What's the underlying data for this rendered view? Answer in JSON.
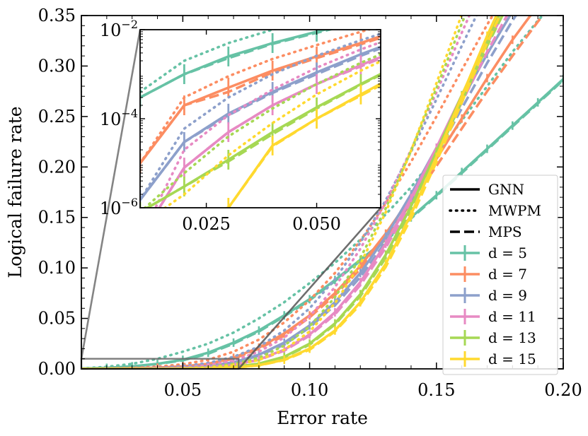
{
  "chart_data": {
    "type": "line",
    "title": "",
    "xlabel": "Error rate",
    "ylabel": "Logical failure rate",
    "xlim": [
      0.01,
      0.2
    ],
    "ylim": [
      0,
      0.35
    ],
    "xticks": [
      0.05,
      0.1,
      0.15,
      0.2
    ],
    "xtick_labels": [
      "0.05",
      "0.10",
      "0.15",
      "0.20"
    ],
    "yticks": [
      0,
      0.05,
      0.1,
      0.15,
      0.2,
      0.25,
      0.3,
      0.35
    ],
    "ytick_labels": [
      "0.00",
      "0.05",
      "0.10",
      "0.15",
      "0.20",
      "0.25",
      "0.30",
      "0.35"
    ],
    "x": [
      0.01,
      0.02,
      0.03,
      0.04,
      0.05,
      0.06,
      0.07,
      0.08,
      0.09,
      0.1,
      0.11,
      0.12,
      0.13,
      0.14,
      0.15,
      0.16,
      0.17,
      0.18,
      0.19,
      0.2
    ],
    "legend": {
      "location": "lower right",
      "style_entries": [
        {
          "label": "GNN",
          "dash": "solid"
        },
        {
          "label": "MWPM",
          "dash": "dotted"
        },
        {
          "label": "MPS",
          "dash": "dashed"
        }
      ]
    },
    "series": [
      {
        "name": "d = 5",
        "color": "#66c2a5",
        "gnn": [
          0.0003,
          0.001,
          0.0025,
          0.005,
          0.009,
          0.016,
          0.026,
          0.038,
          0.053,
          0.069,
          0.088,
          0.108,
          0.128,
          0.15,
          0.172,
          0.195,
          0.218,
          0.241,
          0.264,
          0.287
        ],
        "mwpm": [
          0.0004,
          0.002,
          0.005,
          0.01,
          0.017,
          0.025,
          0.036,
          0.05,
          0.066,
          0.085,
          0.105,
          0.128,
          0.153,
          0.18,
          0.212,
          0.246,
          0.28,
          0.314,
          0.345,
          0.372
        ],
        "mps": [
          0.0003,
          0.001,
          0.0023,
          0.0048,
          0.0085,
          0.015,
          0.025,
          0.037,
          0.052,
          0.068,
          0.087,
          0.107,
          0.127,
          0.149,
          0.171,
          0.194,
          0.217,
          0.24,
          0.263,
          0.286
        ]
      },
      {
        "name": "d = 7",
        "color": "#fc8d62",
        "gnn": [
          1e-05,
          0.0002,
          0.0005,
          0.0012,
          0.0025,
          0.005,
          0.011,
          0.021,
          0.035,
          0.053,
          0.075,
          0.102,
          0.134,
          0.17,
          0.208,
          0.248,
          0.288,
          0.326,
          0.36,
          0.393
        ],
        "mwpm": [
          1e-05,
          0.0003,
          0.0009,
          0.0022,
          0.0045,
          0.009,
          0.017,
          0.029,
          0.046,
          0.068,
          0.095,
          0.127,
          0.164,
          0.205,
          0.25,
          0.296,
          0.341,
          0.383,
          0.421,
          0.455
        ],
        "mps": [
          1e-05,
          0.0002,
          0.0004,
          0.0011,
          0.0023,
          0.0047,
          0.01,
          0.02,
          0.033,
          0.051,
          0.073,
          0.099,
          0.13,
          0.164,
          0.201,
          0.238,
          0.275,
          0.31,
          0.344,
          0.376
        ]
      },
      {
        "name": "d = 9",
        "color": "#8da0cb",
        "gnn": [
          1.5e-06,
          3e-05,
          0.00013,
          0.0004,
          0.0011,
          0.0028,
          0.0065,
          0.014,
          0.026,
          0.043,
          0.066,
          0.095,
          0.131,
          0.173,
          0.219,
          0.266,
          0.312,
          0.354,
          0.392,
          0.425
        ],
        "mwpm": [
          1.5e-06,
          6e-05,
          0.0003,
          0.001,
          0.0026,
          0.0058,
          0.012,
          0.022,
          0.038,
          0.06,
          0.089,
          0.125,
          0.167,
          0.215,
          0.267,
          0.32,
          0.372,
          0.42,
          0.462,
          0.498
        ],
        "mps": [
          1.5e-06,
          3e-05,
          0.00012,
          0.00038,
          0.001,
          0.0026,
          0.0061,
          0.013,
          0.024,
          0.041,
          0.063,
          0.091,
          0.126,
          0.167,
          0.212,
          0.258,
          0.303,
          0.345,
          0.383,
          0.417
        ]
      },
      {
        "name": "d = 11",
        "color": "#e78ac3",
        "gnn": [
          2e-07,
          8e-06,
          5e-05,
          0.0002,
          0.0006,
          0.0016,
          0.004,
          0.0092,
          0.019,
          0.034,
          0.056,
          0.086,
          0.124,
          0.169,
          0.219,
          0.271,
          0.322,
          0.369,
          0.411,
          0.447
        ],
        "mwpm": [
          2e-07,
          2e-05,
          0.00012,
          0.00045,
          0.0014,
          0.0036,
          0.0083,
          0.017,
          0.031,
          0.052,
          0.081,
          0.119,
          0.165,
          0.217,
          0.274,
          0.333,
          0.39,
          0.443,
          0.489,
          0.528
        ],
        "mps": [
          2e-07,
          8e-06,
          5e-05,
          0.0002,
          0.0006,
          0.0015,
          0.0038,
          0.0088,
          0.018,
          0.033,
          0.054,
          0.083,
          0.12,
          0.164,
          0.213,
          0.264,
          0.314,
          0.36,
          0.402,
          0.438
        ]
      },
      {
        "name": "d = 13",
        "color": "#a6d854",
        "gnn": [
          8e-07,
          3e-06,
          1.2e-05,
          5e-05,
          0.00018,
          0.0006,
          0.0019,
          0.0052,
          0.012,
          0.025,
          0.045,
          0.074,
          0.113,
          0.161,
          0.215,
          0.271,
          0.326,
          0.377,
          0.422,
          0.461
        ],
        "mwpm": [
          8e-07,
          6e-06,
          4e-05,
          0.00017,
          0.0006,
          0.0018,
          0.0048,
          0.011,
          0.023,
          0.042,
          0.071,
          0.11,
          0.159,
          0.216,
          0.278,
          0.342,
          0.404,
          0.46,
          0.508,
          0.549
        ],
        "mps": [
          8e-07,
          3e-06,
          1.1e-05,
          4.5e-05,
          0.00017,
          0.00058,
          0.0018,
          0.005,
          0.0115,
          0.024,
          0.044,
          0.072,
          0.11,
          0.157,
          0.21,
          0.265,
          0.32,
          0.37,
          0.415,
          0.454
        ]
      },
      {
        "name": "d = 15",
        "color": "#ffd92f",
        "gnn": [
          4e-07,
          5e-07,
          1e-06,
          2.5e-05,
          0.0001,
          0.00035,
          0.0012,
          0.0036,
          0.009,
          0.02,
          0.038,
          0.066,
          0.104,
          0.153,
          0.21,
          0.27,
          0.33,
          0.385,
          0.434,
          0.476
        ],
        "mwpm": [
          4e-07,
          2e-06,
          1.5e-05,
          8e-05,
          0.00035,
          0.0012,
          0.0035,
          0.0088,
          0.019,
          0.037,
          0.065,
          0.104,
          0.155,
          0.216,
          0.283,
          0.351,
          0.416,
          0.475,
          0.525,
          0.567
        ],
        "mps": [
          4e-07,
          5e-07,
          1e-06,
          2.4e-05,
          0.0001,
          0.00033,
          0.0011,
          0.0034,
          0.0087,
          0.019,
          0.037,
          0.064,
          0.101,
          0.149,
          0.205,
          0.264,
          0.323,
          0.377,
          0.426,
          0.468
        ]
      }
    ],
    "inset": {
      "yscale": "log",
      "xlim": [
        0.01,
        0.0645
      ],
      "ylim": [
        1e-06,
        0.01
      ],
      "xticks": [
        0.025,
        0.05
      ],
      "xtick_labels": [
        "0.025",
        "0.050"
      ],
      "yticks": [
        1e-06,
        0.0001,
        0.01
      ],
      "ytick_labels": [
        {
          "base": "10",
          "exp": "−6"
        },
        {
          "base": "10",
          "exp": "−4"
        },
        {
          "base": "10",
          "exp": "−2"
        }
      ],
      "zoom_region": {
        "x": [
          0.01,
          0.072
        ],
        "y": [
          0,
          0.01
        ]
      }
    }
  }
}
